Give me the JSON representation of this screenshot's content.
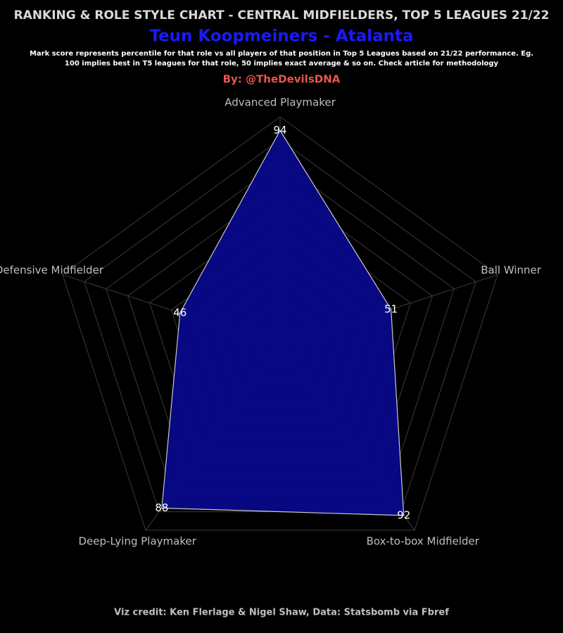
{
  "chart_data": {
    "type": "radar",
    "title": "RANKING & ROLE STYLE CHART - CENTRAL MIDFIELDERS, TOP 5 LEAGUES 21/22",
    "subtitle": "Teun Koopmeiners - Atalanta",
    "description": "Mark score represents percentile for that role vs all players of that position in Top 5 Leagues based on 21/22 performance. Eg. 100 implies best in T5 leagues for that role, 50 implies exact average & so on. Check article for methodology",
    "byline": "By: @TheDevilsDNA",
    "credit": "Viz credit: Ken Flerlage & Nigel Shaw, Data: Statsbomb via Fbref",
    "categories": [
      "Advanced Playmaker",
      "Ball Winner",
      "Box-to-box Midfielder",
      "Deep-Lying Playmaker",
      "Defensive Midfielder"
    ],
    "values": [
      94,
      51,
      92,
      88,
      46
    ],
    "color": "#08088a",
    "rlim": [
      0,
      100
    ],
    "rticks": [
      10,
      20,
      30,
      40,
      50,
      60,
      70,
      80,
      90,
      100
    ],
    "grid": true
  }
}
